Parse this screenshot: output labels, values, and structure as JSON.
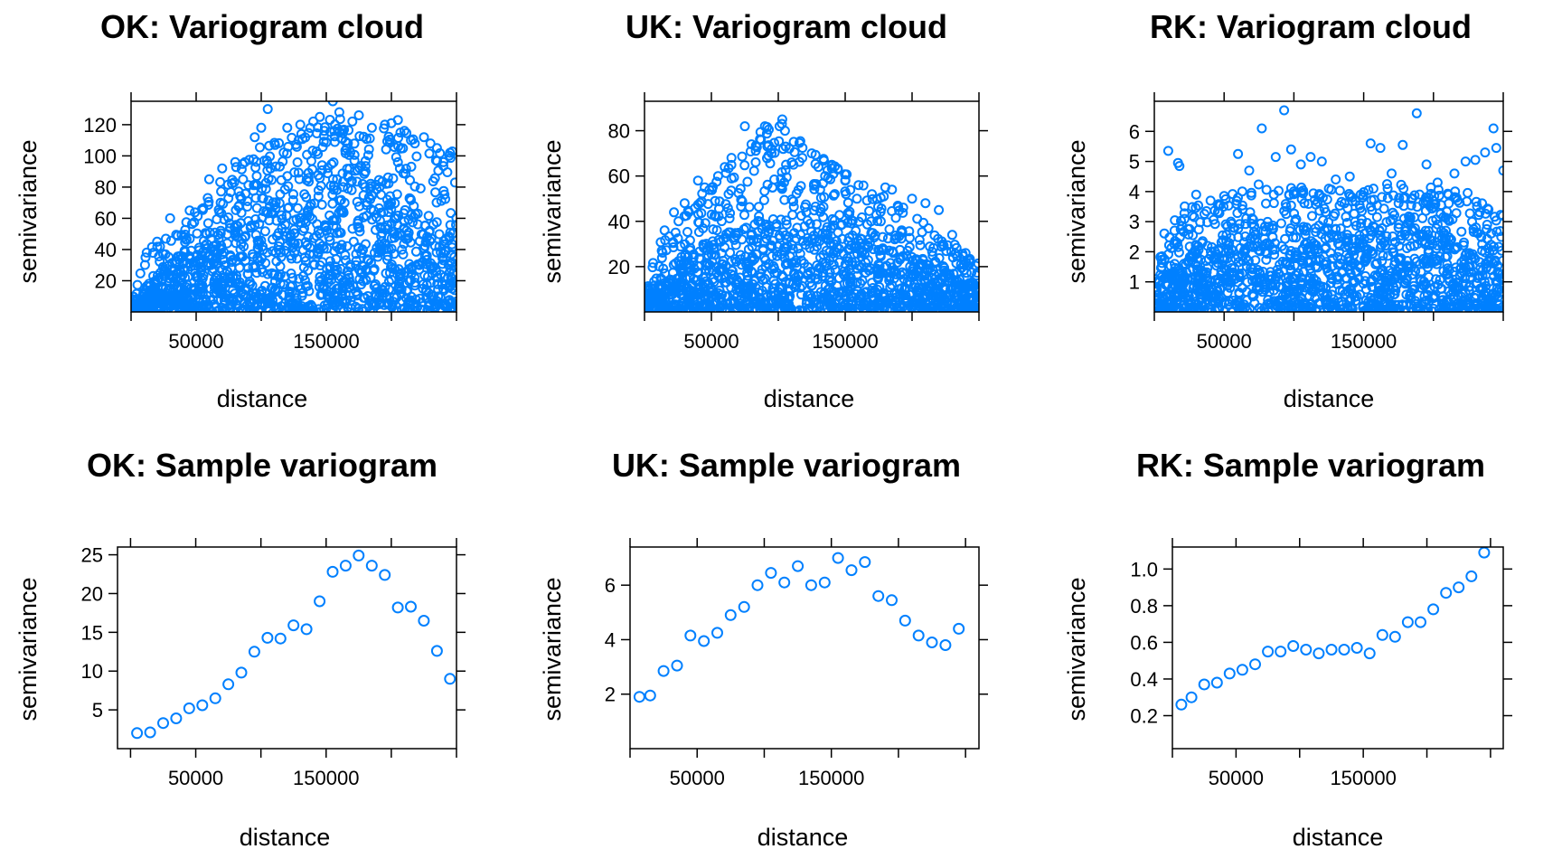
{
  "colors": {
    "points": "#0080ff",
    "axes": "#000000",
    "background": "#ffffff"
  },
  "chart_data": [
    {
      "type": "scatter",
      "title": "OK: Variogram cloud",
      "xlabel": "distance",
      "ylabel": "semivariance",
      "xlim": [
        0,
        250000
      ],
      "ylim": [
        0,
        135
      ],
      "xticks": [
        50000,
        150000
      ],
      "xticklabels": [
        "50000",
        "150000"
      ],
      "xticks_top": [
        0,
        50000,
        100000,
        150000,
        200000,
        250000
      ],
      "yticks": [
        20,
        40,
        60,
        80,
        100,
        120
      ],
      "yticklabels": [
        "20",
        "40",
        "60",
        "80",
        "100",
        "120"
      ],
      "grid": false,
      "legend": "none",
      "cloud": {
        "approximate_point_count": 1500,
        "envelope": [
          [
            0,
            5
          ],
          [
            10000,
            38
          ],
          [
            30000,
            50
          ],
          [
            50000,
            65
          ],
          [
            70000,
            88
          ],
          [
            90000,
            100
          ],
          [
            105000,
            110
          ],
          [
            130000,
            115
          ],
          [
            155000,
            125
          ],
          [
            180000,
            120
          ],
          [
            205000,
            118
          ],
          [
            225000,
            112
          ],
          [
            245000,
            103
          ]
        ],
        "dense_band_max": [
          [
            0,
            4
          ],
          [
            20000,
            25
          ],
          [
            50000,
            42
          ],
          [
            80000,
            60
          ],
          [
            110000,
            70
          ],
          [
            140000,
            95
          ],
          [
            160000,
            100
          ],
          [
            190000,
            85
          ],
          [
            220000,
            70
          ],
          [
            250000,
            55
          ]
        ]
      },
      "series": [
        {
          "x": [
            105000,
            155000,
            120000,
            175000,
            205000,
            95000,
            60000,
            140000,
            195000,
            210000,
            225000,
            235000,
            245000,
            218000,
            185000,
            130000,
            80000,
            45000,
            30000,
            20000,
            12000,
            70000,
            145000,
            160000,
            170000,
            200000,
            240000,
            230000,
            215000,
            100000
          ],
          "y": [
            130,
            135,
            118,
            126,
            123,
            112,
            85,
            122,
            120,
            116,
            112,
            105,
            102,
            108,
            118,
            120,
            96,
            65,
            60,
            45,
            38,
            92,
            125,
            128,
            122,
            121,
            96,
            108,
            110,
            118
          ]
        }
      ]
    },
    {
      "type": "scatter",
      "title": "UK: Variogram cloud",
      "xlabel": "distance",
      "ylabel": "semivariance",
      "xlim": [
        0,
        250000
      ],
      "ylim": [
        0,
        93
      ],
      "xticks": [
        50000,
        150000
      ],
      "xticklabels": [
        "50000",
        "150000"
      ],
      "xticks_top": [
        0,
        50000,
        100000,
        150000,
        200000,
        250000
      ],
      "yticks": [
        20,
        40,
        60,
        80
      ],
      "yticklabels": [
        "20",
        "40",
        "60",
        "80"
      ],
      "grid": false,
      "legend": "none",
      "cloud": {
        "approximate_point_count": 1500,
        "envelope": [
          [
            0,
            8
          ],
          [
            10000,
            30
          ],
          [
            30000,
            45
          ],
          [
            50000,
            58
          ],
          [
            70000,
            68
          ],
          [
            90000,
            82
          ],
          [
            105000,
            85
          ],
          [
            130000,
            70
          ],
          [
            160000,
            58
          ],
          [
            190000,
            48
          ],
          [
            220000,
            35
          ],
          [
            250000,
            22
          ]
        ],
        "dense_band_max": [
          [
            0,
            6
          ],
          [
            20000,
            22
          ],
          [
            50000,
            32
          ],
          [
            80000,
            40
          ],
          [
            110000,
            42
          ],
          [
            140000,
            38
          ],
          [
            170000,
            32
          ],
          [
            200000,
            26
          ],
          [
            230000,
            18
          ],
          [
            250000,
            12
          ]
        ]
      },
      "series": [
        {
          "x": [
            90000,
            103000,
            105000,
            75000,
            80000,
            125000,
            118000,
            65000,
            55000,
            40000,
            30000,
            22000,
            140000,
            160000,
            180000,
            200000,
            220000,
            240000,
            150000,
            95000,
            110000,
            130000,
            170000,
            185000,
            210000,
            230000,
            15000,
            45000,
            60000,
            135000
          ],
          "y": [
            82,
            85,
            80,
            82,
            74,
            70,
            68,
            68,
            60,
            58,
            48,
            44,
            65,
            56,
            55,
            50,
            45,
            26,
            58,
            70,
            66,
            64,
            52,
            54,
            48,
            34,
            36,
            55,
            64,
            60
          ]
        }
      ]
    },
    {
      "type": "scatter",
      "title": "RK: Variogram cloud",
      "xlabel": "distance",
      "ylabel": "semivariance",
      "xlim": [
        0,
        250000
      ],
      "ylim": [
        0,
        7
      ],
      "xticks": [
        50000,
        150000
      ],
      "xticklabels": [
        "50000",
        "150000"
      ],
      "xticks_top": [
        0,
        50000,
        100000,
        150000,
        200000,
        250000
      ],
      "yticks": [
        1,
        2,
        3,
        4,
        5,
        6
      ],
      "yticklabels": [
        "1",
        "2",
        "3",
        "4",
        "5",
        "6"
      ],
      "grid": false,
      "legend": "none",
      "cloud": {
        "approximate_point_count": 1500,
        "envelope": [
          [
            0,
            1
          ],
          [
            8000,
            2.8
          ],
          [
            20000,
            3.5
          ],
          [
            50000,
            3.8
          ],
          [
            80000,
            4.4
          ],
          [
            110000,
            4.2
          ],
          [
            140000,
            4.0
          ],
          [
            170000,
            4.3
          ],
          [
            200000,
            4.2
          ],
          [
            230000,
            4.0
          ],
          [
            250000,
            3.6
          ]
        ],
        "dense_band_max": [
          [
            0,
            0.8
          ],
          [
            15000,
            2.0
          ],
          [
            50000,
            2.6
          ],
          [
            100000,
            3.0
          ],
          [
            150000,
            2.9
          ],
          [
            200000,
            2.8
          ],
          [
            250000,
            2.4
          ]
        ]
      },
      "series": [
        {
          "x": [
            10000,
            17000,
            18000,
            60000,
            87000,
            93000,
            77000,
            112000,
            120000,
            155000,
            162000,
            188000,
            230000,
            237000,
            243000,
            250000,
            68000,
            105000,
            140000,
            178000,
            215000,
            223000,
            30000,
            50000,
            130000,
            195000,
            203000,
            245000,
            98000,
            170000
          ],
          "y": [
            5.35,
            4.95,
            4.85,
            5.25,
            5.15,
            6.7,
            6.1,
            5.15,
            5.0,
            5.6,
            5.45,
            6.6,
            5.05,
            5.3,
            6.1,
            4.7,
            4.7,
            4.9,
            4.5,
            5.55,
            4.6,
            5.0,
            3.9,
            3.85,
            4.4,
            4.9,
            4.3,
            5.45,
            5.4,
            4.6
          ]
        }
      ]
    },
    {
      "type": "scatter",
      "title": "OK: Sample variogram",
      "xlabel": "distance",
      "ylabel": "semivariance",
      "xlim": [
        -10000,
        250000
      ],
      "ylim": [
        0,
        26
      ],
      "xticks": [
        50000,
        150000
      ],
      "xticklabels": [
        "50000",
        "150000"
      ],
      "xticks_top": [
        0,
        50000,
        100000,
        150000,
        200000,
        250000
      ],
      "yticks": [
        5,
        10,
        15,
        20,
        25
      ],
      "yticklabels": [
        "5",
        "10",
        "15",
        "20",
        "25"
      ],
      "grid": false,
      "legend": "none",
      "series": [
        {
          "x": [
            5000,
            15000,
            25000,
            35000,
            45000,
            55000,
            65000,
            75000,
            85000,
            95000,
            105000,
            115000,
            125000,
            135000,
            145000,
            155000,
            165000,
            175000,
            185000,
            195000,
            205000,
            215000,
            225000,
            235000,
            245000
          ],
          "y": [
            2.0,
            2.1,
            3.3,
            3.9,
            5.2,
            5.6,
            6.5,
            8.3,
            9.8,
            12.5,
            14.3,
            14.2,
            15.9,
            15.4,
            19.0,
            22.8,
            23.6,
            24.9,
            23.6,
            22.4,
            18.2,
            18.3,
            16.5,
            12.6,
            9.0
          ]
        }
      ]
    },
    {
      "type": "scatter",
      "title": "UK: Sample variogram",
      "xlabel": "distance",
      "ylabel": "semivariance",
      "xlim": [
        0,
        260000
      ],
      "ylim": [
        0,
        7.4
      ],
      "xticks": [
        50000,
        150000
      ],
      "xticklabels": [
        "50000",
        "150000"
      ],
      "xticks_top": [
        0,
        50000,
        100000,
        150000,
        200000,
        250000
      ],
      "yticks": [
        2,
        4,
        6
      ],
      "yticklabels": [
        "2",
        "4",
        "6"
      ],
      "grid": false,
      "legend": "none",
      "series": [
        {
          "x": [
            7000,
            15000,
            25000,
            35000,
            45000,
            55000,
            65000,
            75000,
            85000,
            95000,
            105000,
            115000,
            125000,
            135000,
            145000,
            155000,
            165000,
            175000,
            185000,
            195000,
            205000,
            215000,
            225000,
            235000,
            245000
          ],
          "y": [
            1.9,
            1.95,
            2.85,
            3.05,
            4.15,
            3.95,
            4.25,
            4.9,
            5.2,
            6.0,
            6.45,
            6.1,
            6.7,
            6.0,
            6.1,
            7.0,
            6.55,
            6.85,
            5.6,
            5.45,
            4.7,
            4.15,
            3.9,
            3.8,
            4.4
          ]
        }
      ]
    },
    {
      "type": "scatter",
      "title": "RK: Sample variogram",
      "xlabel": "distance",
      "ylabel": "semivariance",
      "xlim": [
        0,
        260000
      ],
      "ylim": [
        0.02,
        1.12
      ],
      "xticks": [
        50000,
        150000
      ],
      "xticklabels": [
        "50000",
        "150000"
      ],
      "xticks_top": [
        0,
        50000,
        100000,
        150000,
        200000,
        250000
      ],
      "yticks": [
        0.2,
        0.4,
        0.6,
        0.8,
        1.0
      ],
      "yticklabels": [
        "0.2",
        "0.4",
        "0.6",
        "0.8",
        "1.0"
      ],
      "grid": false,
      "legend": "none",
      "series": [
        {
          "x": [
            7000,
            15000,
            25000,
            35000,
            45000,
            55000,
            65000,
            75000,
            85000,
            95000,
            105000,
            115000,
            125000,
            135000,
            145000,
            155000,
            165000,
            175000,
            185000,
            195000,
            205000,
            215000,
            225000,
            235000,
            245000
          ],
          "y": [
            0.26,
            0.3,
            0.37,
            0.38,
            0.43,
            0.45,
            0.48,
            0.55,
            0.55,
            0.58,
            0.56,
            0.54,
            0.56,
            0.56,
            0.57,
            0.54,
            0.64,
            0.63,
            0.71,
            0.71,
            0.78,
            0.87,
            0.9,
            0.96,
            1.09
          ]
        }
      ]
    }
  ]
}
